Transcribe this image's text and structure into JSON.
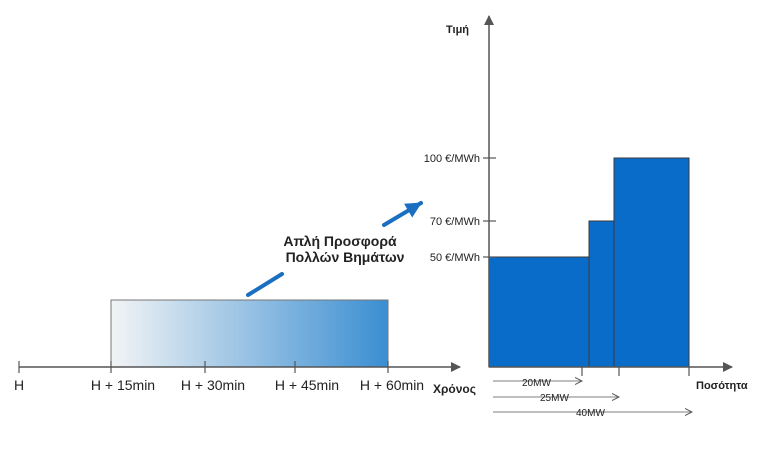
{
  "timeline": {
    "ticks": [
      "H",
      "H + 15min",
      "H + 30min",
      "H + 45min",
      "H + 60min"
    ],
    "axis_label": "Χρόνος"
  },
  "callout": {
    "line1": "Απλή Προσφορά",
    "line2": "Πολλών Βημάτων"
  },
  "chart": {
    "y_axis_label": "Τιμή",
    "x_axis_label": "Ποσότητα",
    "price_labels": [
      "50 €/MWh",
      "70 €/MWh",
      "100 €/MWh"
    ],
    "quantity_labels": [
      "20MW",
      "25MW",
      "40MW"
    ]
  },
  "colors": {
    "bar": "#0a6cc9",
    "axis": "#555555",
    "gradient_start": "#f2f4f5",
    "gradient_end": "#3a8ed2",
    "arrow": "#1a6fc0"
  },
  "chart_data": {
    "type": "bar",
    "title": "",
    "xlabel": "Ποσότητα",
    "ylabel": "Τιμή",
    "steps": [
      {
        "quantity_from": 0,
        "quantity_to": 20,
        "price": 50
      },
      {
        "quantity_from": 20,
        "quantity_to": 25,
        "price": 70
      },
      {
        "quantity_from": 25,
        "quantity_to": 40,
        "price": 100
      }
    ]
  }
}
